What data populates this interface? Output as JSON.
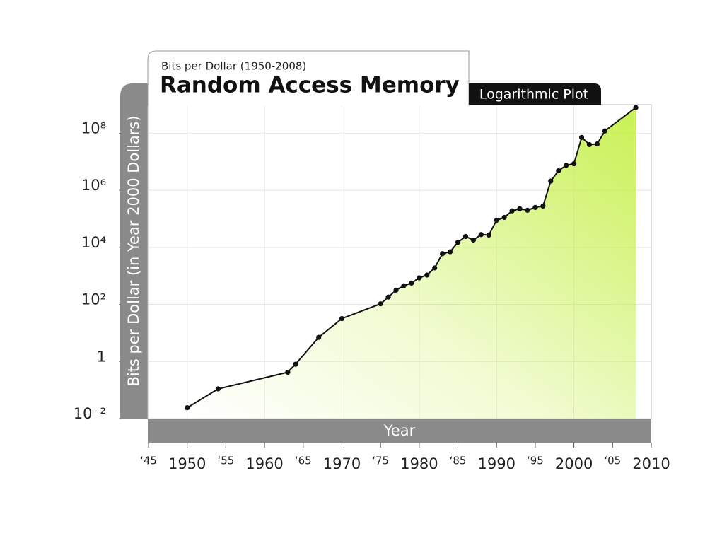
{
  "chart_data": {
    "type": "line",
    "title": "Random Access Memory",
    "subtitle": "Bits per Dollar (1950-2008)",
    "badge": "Logarithmic Plot",
    "x_label": "Year",
    "y_label": "Bits per Dollar (in Year 2000 Dollars)",
    "y_scale": "log",
    "grid": true,
    "color": "#111111",
    "area_color": "#c6f04a",
    "x": [
      1950,
      1954,
      1963,
      1964,
      1967,
      1970,
      1975,
      1976,
      1977,
      1978,
      1979,
      1980,
      1981,
      1982,
      1983,
      1984,
      1985,
      1986,
      1987,
      1988,
      1989,
      1990,
      1991,
      1992,
      1993,
      1994,
      1995,
      1996,
      1997,
      1998,
      1999,
      2000,
      2001,
      2002,
      2003,
      2004,
      2008
    ],
    "values": [
      0.024,
      0.11,
      0.42,
      0.8,
      7,
      32,
      105,
      180,
      316,
      450,
      560,
      850,
      1070,
      1900,
      6000,
      7000,
      15000,
      24000,
      18000,
      28000,
      27000,
      89000,
      112000,
      190000,
      224000,
      200000,
      250000,
      280000,
      2100000,
      4800000,
      7500000,
      8500000,
      71000000,
      40000000,
      42000000,
      120000000,
      790000000
    ],
    "xlim": [
      1945,
      2010
    ],
    "ylim": [
      0.01,
      1000000000
    ],
    "xticks": [
      {
        "value": 1945,
        "label": "‘45"
      },
      1950,
      {
        "value": 1955,
        "label": "‘55"
      },
      1960,
      {
        "value": 1965,
        "label": "‘65"
      },
      1970,
      {
        "value": 1975,
        "label": "‘75"
      },
      1980,
      {
        "value": 1985,
        "label": "‘85"
      },
      1990,
      {
        "value": 1995,
        "label": "‘95"
      },
      2000,
      {
        "value": 2005,
        "label": "‘05"
      },
      2010
    ],
    "yticks": [
      {
        "value": 0.01,
        "label": "10⁻²"
      },
      1,
      {
        "value": 100,
        "label": "10²"
      },
      {
        "value": 10000,
        "label": "10⁴"
      },
      {
        "value": 1000000,
        "label": "10⁶"
      },
      {
        "value": 100000000,
        "label": "10⁸"
      }
    ]
  }
}
